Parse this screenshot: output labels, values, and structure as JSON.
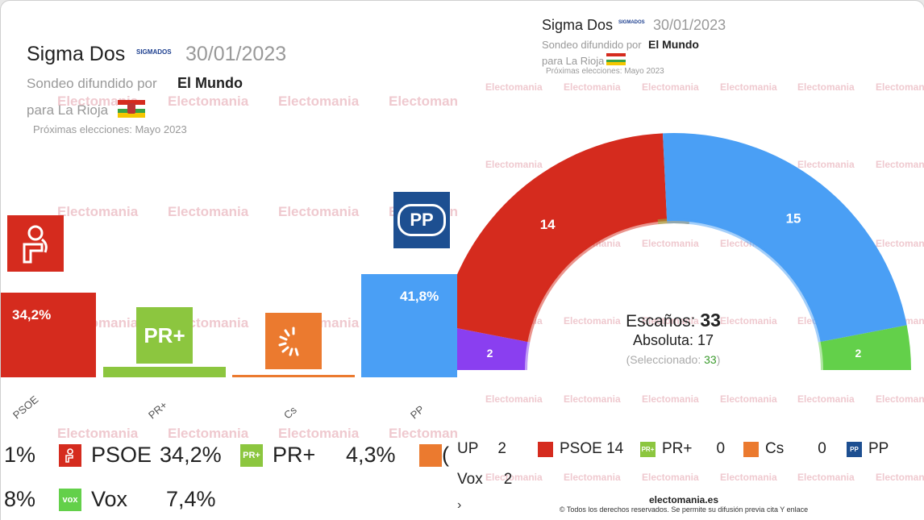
{
  "left": {
    "pollster": "Sigma Dos",
    "pollster_logo": "SIGMADOS",
    "date": "30/01/2023",
    "sponsor_prefix": "Sondeo difundido por",
    "sponsor": "El Mundo",
    "region": "para La Rioja",
    "next_elections": "Próximas elecciones: Mayo 2023",
    "watermark": "Electomania",
    "legend": [
      {
        "cut": "1%",
        "party": "",
        "value": ""
      },
      {
        "icon": "psoe-icon",
        "party": "PSOE",
        "value": "34,2%"
      },
      {
        "icon": "pr-plus-icon",
        "party": "PR+",
        "value": "4,3%"
      },
      {
        "cut": "8%",
        "party": "",
        "value": ""
      },
      {
        "icon": "vox-icon",
        "party": "Vox",
        "value": "7,4%"
      }
    ],
    "vox_logo": "vox"
  },
  "right": {
    "pollster": "Sigma Dos",
    "pollster_logo": "SIGMADOS",
    "date": "30/01/2023",
    "sponsor_prefix": "Sondeo difundido por",
    "sponsor": "El Mundo",
    "region": "para La Rioja",
    "next_elections": "Próximas elecciones: Mayo 2023",
    "seats_label": "Escaños:",
    "seats_total": "33",
    "majority_label": "Absoluta: 17",
    "selected_label": "(Seleccionado:",
    "selected_value": "33",
    "selected_close": ")",
    "legend_row1": [
      {
        "party": "UP",
        "seats": "2"
      },
      {
        "icon": "psoe-icon",
        "party": "PSOE 14",
        "seats": ""
      },
      {
        "icon": "pr-plus-icon",
        "party": "PR+",
        "seats": "0"
      },
      {
        "icon": "cs-icon",
        "party": "Cs",
        "seats": "0"
      },
      {
        "icon": "pp-icon",
        "party": "PP",
        "seats": ""
      }
    ],
    "legend_row2": [
      {
        "party": "Vox",
        "seats": "2"
      }
    ],
    "site": "electomania.es",
    "copyright": "© Todos los derechos reservados. Se permite su difusión previa cita Y enlace",
    "watermark": "Electomania"
  },
  "colors": {
    "psoe": "#d52b1e",
    "pr": "#8cc63f",
    "cs": "#eb7a2f",
    "pp": "#4a9ff5",
    "pp_logo": "#1d4f91",
    "up": "#8a3ff0",
    "vox": "#63d04a"
  },
  "chart_data": [
    {
      "type": "bar",
      "categories": [
        "PSOE",
        "PR+",
        "Cs",
        "PP"
      ],
      "values": [
        34.2,
        4.3,
        1.0,
        41.8
      ],
      "labels": [
        "34,2%",
        "",
        "",
        "41,8%"
      ],
      "ylim": [
        0,
        55
      ]
    },
    {
      "type": "pie",
      "style": "parliament-semicircle",
      "categories": [
        "UP",
        "PSOE",
        "PR+",
        "Cs",
        "PP",
        "Vox"
      ],
      "values": [
        2,
        14,
        0,
        0,
        15,
        2
      ],
      "labels": [
        "2",
        "14",
        "",
        "",
        "15",
        "2"
      ],
      "total": 33,
      "majority": 17
    }
  ]
}
